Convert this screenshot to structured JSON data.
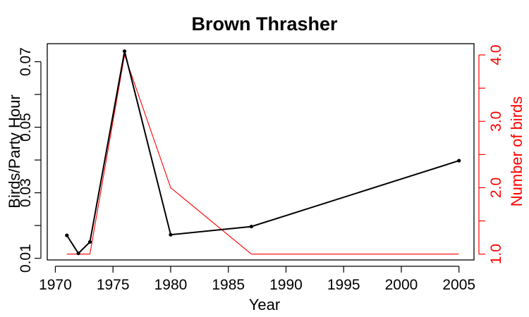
{
  "chart_data": {
    "type": "line",
    "title": "Brown Thrasher",
    "xlabel": "Year",
    "ylabel": "Birds/Party Hour",
    "ylabel_right": "Number of birds",
    "xlim": [
      1969.3,
      2006.3
    ],
    "ylim": [
      0.0095,
      0.0755
    ],
    "ylim_right": [
      0.912,
      4.17
    ],
    "x_ticks": [
      1970,
      1975,
      1980,
      1985,
      1990,
      1995,
      2000,
      2005
    ],
    "x_tick_labels": [
      "1970",
      "1975",
      "1980",
      "1985",
      "1990",
      "1995",
      "2000",
      "2005"
    ],
    "y_ticks": [
      0.01,
      0.03,
      0.05,
      0.07
    ],
    "y_minor_ticks": [
      0.02,
      0.04,
      0.06
    ],
    "y_tick_labels": [
      "0.01",
      "0.03",
      "0.05",
      "0.07"
    ],
    "y_right_ticks": [
      1.0,
      2.0,
      3.0,
      4.0
    ],
    "y_right_minor_ticks": [
      1.5,
      2.5,
      3.5
    ],
    "y_right_tick_labels": [
      "1.0",
      "2.0",
      "3.0",
      "4.0"
    ],
    "grid": false,
    "colors": {
      "primary": "#000000",
      "secondary": "#ff0000"
    },
    "series": [
      {
        "axis": "left",
        "color": "#000000",
        "markers": true,
        "x": [
          1971,
          1972,
          1973,
          1976,
          1980,
          1987,
          2005
        ],
        "y": [
          0.017,
          0.0115,
          0.015,
          0.0732,
          0.0172,
          0.0197,
          0.0398
        ]
      },
      {
        "axis": "right",
        "color": "#ff0000",
        "markers": false,
        "x": [
          1971,
          1972,
          1973,
          1976,
          1980,
          1987,
          2005
        ],
        "y": [
          1,
          1,
          1,
          4,
          2,
          1,
          1
        ]
      }
    ]
  }
}
